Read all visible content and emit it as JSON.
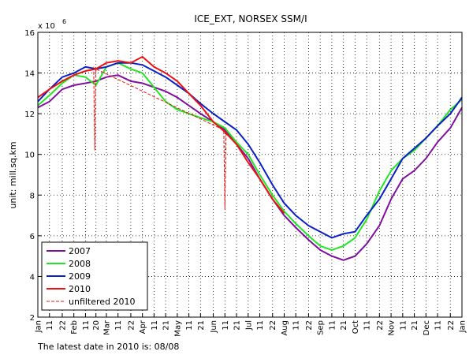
{
  "chart_data": {
    "type": "line",
    "title": "ICE_EXT, NORSEX SSM/I",
    "y_label": "unit: mill.sq.km",
    "y_scale_base": "x 10",
    "y_scale_exponent": "6",
    "note": "The latest date in 2010 is: 08/08",
    "xlim": [
      1,
      366
    ],
    "ylim": [
      2,
      16
    ],
    "yticks": [
      2,
      4,
      6,
      8,
      10,
      12,
      14,
      16
    ],
    "xticks": [
      {
        "value": 1,
        "label": "Jan"
      },
      11,
      22,
      {
        "value": 32,
        "label": "Feb"
      },
      {
        "value": 42,
        "label": "11"
      },
      {
        "value": 51,
        "label": "20"
      },
      {
        "value": 60,
        "label": "Mar"
      },
      {
        "value": 70,
        "label": "11"
      },
      {
        "value": 81,
        "label": "22"
      },
      {
        "value": 91,
        "label": "Apr"
      },
      {
        "value": 101,
        "label": "11"
      },
      {
        "value": 111,
        "label": "21"
      },
      {
        "value": 121,
        "label": "May"
      },
      {
        "value": 131,
        "label": "11"
      },
      {
        "value": 141,
        "label": "21"
      },
      {
        "value": 152,
        "label": "Jun"
      },
      {
        "value": 162,
        "label": "11"
      },
      {
        "value": 172,
        "label": "21"
      },
      {
        "value": 182,
        "label": "Jul"
      },
      {
        "value": 192,
        "label": "11"
      },
      {
        "value": 203,
        "label": "22"
      },
      {
        "value": 213,
        "label": "Aug"
      },
      {
        "value": 223,
        "label": "11"
      },
      {
        "value": 234,
        "label": "22"
      },
      {
        "value": 244,
        "label": "Sep"
      },
      {
        "value": 254,
        "label": "11"
      },
      {
        "value": 264,
        "label": "21"
      },
      {
        "value": 274,
        "label": "Oct"
      },
      {
        "value": 284,
        "label": "11"
      },
      {
        "value": 295,
        "label": "22"
      },
      {
        "value": 305,
        "label": "Nov"
      },
      {
        "value": 315,
        "label": "11"
      },
      {
        "value": 325,
        "label": "21"
      },
      {
        "value": 335,
        "label": "Dec"
      },
      {
        "value": 345,
        "label": "11"
      },
      {
        "value": 356,
        "label": "22"
      },
      {
        "value": 366,
        "label": "Jan"
      }
    ],
    "grid": true,
    "legend": "lower left",
    "x": [
      1,
      11,
      22,
      32,
      42,
      51,
      60,
      70,
      81,
      91,
      101,
      111,
      121,
      131,
      141,
      152,
      162,
      172,
      182,
      192,
      203,
      213,
      223,
      234,
      244,
      254,
      264,
      274,
      284,
      295,
      305,
      315,
      325,
      335,
      345,
      356,
      366
    ],
    "series": [
      {
        "name": "2007",
        "color": "#7f0f9f",
        "values": [
          12.3,
          12.6,
          13.2,
          13.4,
          13.5,
          13.6,
          13.8,
          13.9,
          13.6,
          13.5,
          13.3,
          13.1,
          12.8,
          12.4,
          12.0,
          11.6,
          11.2,
          10.5,
          9.8,
          8.8,
          7.8,
          7.0,
          6.4,
          5.8,
          5.3,
          5.0,
          4.8,
          5.0,
          5.6,
          6.5,
          7.8,
          8.8,
          9.2,
          9.8,
          10.6,
          11.3,
          12.3
        ]
      },
      {
        "name": "2008",
        "color": "#22e622",
        "values": [
          12.4,
          12.9,
          13.5,
          13.9,
          13.8,
          13.4,
          14.3,
          14.5,
          14.2,
          14.0,
          13.3,
          12.6,
          12.2,
          12.0,
          11.8,
          11.6,
          11.3,
          10.6,
          10.0,
          9.0,
          8.0,
          7.2,
          6.6,
          6.0,
          5.5,
          5.3,
          5.5,
          5.9,
          6.8,
          8.2,
          9.2,
          9.8,
          10.2,
          10.8,
          11.4,
          12.2,
          12.7
        ]
      },
      {
        "name": "2009",
        "color": "#0a1fc8",
        "values": [
          12.6,
          13.2,
          13.8,
          14.0,
          14.3,
          14.2,
          14.3,
          14.5,
          14.5,
          14.4,
          14.1,
          13.8,
          13.4,
          13.0,
          12.5,
          12.0,
          11.6,
          11.2,
          10.5,
          9.6,
          8.5,
          7.6,
          7.0,
          6.5,
          6.2,
          5.9,
          6.1,
          6.2,
          7.0,
          7.8,
          8.8,
          9.8,
          10.3,
          10.8,
          11.4,
          12.0,
          12.8
        ]
      },
      {
        "name": "2010",
        "color": "#ee1111",
        "values": [
          12.8,
          13.2,
          13.6,
          13.9,
          14.1,
          14.2,
          14.5,
          14.6,
          14.5,
          14.8,
          14.3,
          14.0,
          13.6,
          13.0,
          12.4,
          11.6,
          11.1,
          10.5,
          9.6,
          8.8,
          7.8,
          7.1,
          null,
          null,
          null,
          null,
          null,
          null,
          null,
          null,
          null,
          null,
          null,
          null,
          null,
          null,
          null
        ]
      },
      {
        "name": "unfiltered 2010",
        "color": "#ee1111",
        "dashed": true,
        "x": [
          49,
          50,
          51,
          161,
          162,
          163
        ],
        "values": [
          14.3,
          10.2,
          14.2,
          11.2,
          7.3,
          11.1
        ]
      }
    ]
  }
}
